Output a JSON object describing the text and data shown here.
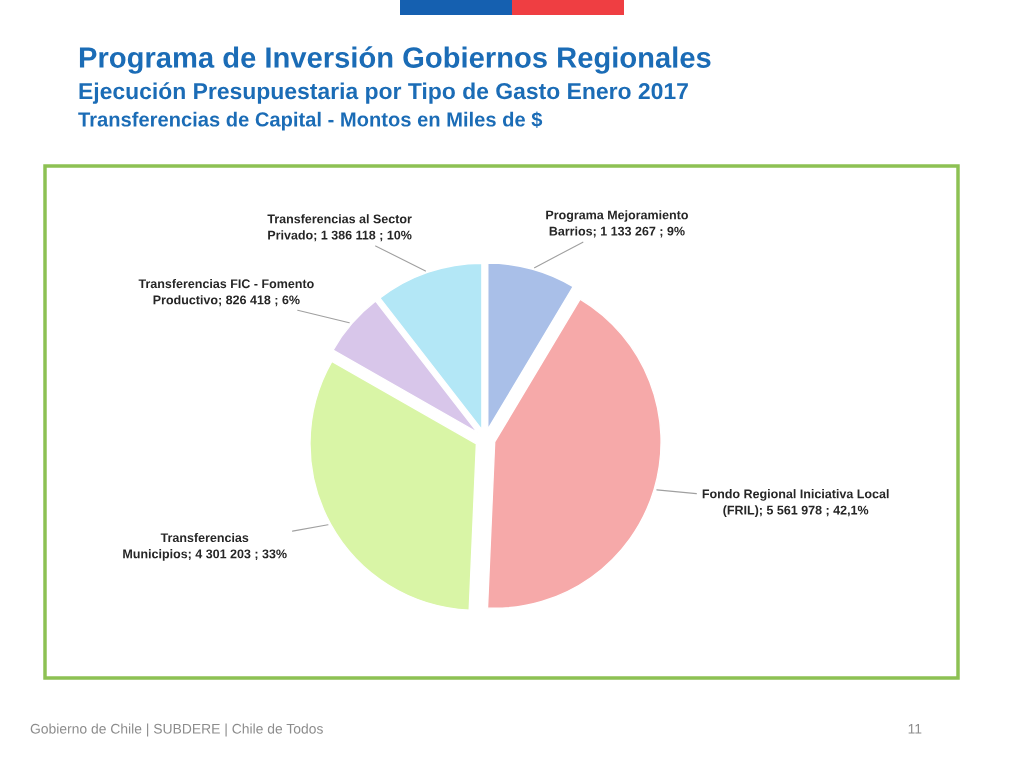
{
  "chart_data": {
    "type": "pie",
    "title": "Programa de Inversión Gobiernos Regionales",
    "subtitle": "Ejecución Presupuestaria por Tipo de Gasto Enero 2017\nTransferencias de Capital - Montos en Miles de $",
    "categories": [
      "Programa Mejoramiento Barrios",
      "Fondo Regional Iniciativa Local (FRIL)",
      "Transferencias Municipios",
      "Transferencias FIC - Fomento Productivo",
      "Transferencias al Sector Privado"
    ],
    "values": [
      1133267,
      5561978,
      4301203,
      826418,
      1386118
    ],
    "colors": [
      "#a9bfe8",
      "#f6a9a9",
      "#d9f5a6",
      "#d8c6ea",
      "#b3e7f6"
    ],
    "value_labels": [
      "1 133 267 ; 9%",
      "5 561 978 ; 42,1%",
      "4 301 203 ; 33%",
      "826 418 ; 6%",
      "1 386 118 ; 10%"
    ],
    "annotations": [
      "Gobierno de Chile | SUBDERE | Chile de Todos",
      "11"
    ]
  }
}
